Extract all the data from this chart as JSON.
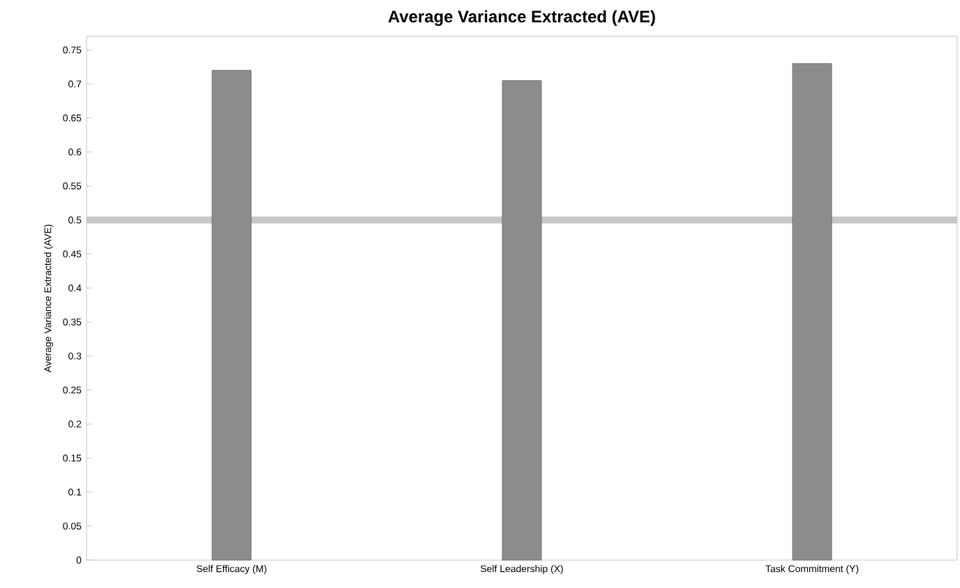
{
  "chart_data": {
    "type": "bar",
    "title": "Average Variance Extracted (AVE)",
    "ylabel": "Average Variance Extracted (AVE)",
    "categories": [
      "Self Efficacy (M)",
      "Self Leadership (X)",
      "Task Commitment (Y)"
    ],
    "values": [
      0.72,
      0.705,
      0.73
    ],
    "color": "#8c8c8c",
    "ylim": [
      0,
      0.77
    ],
    "yticks": [
      0,
      0.05,
      0.1,
      0.15,
      0.2,
      0.25,
      0.3,
      0.35,
      0.4,
      0.45,
      0.5,
      0.55,
      0.6,
      0.65,
      0.7,
      0.75
    ],
    "ref_lines": [
      {
        "axis": "y",
        "value": 0.5,
        "color": "#c8c8c8"
      }
    ]
  }
}
